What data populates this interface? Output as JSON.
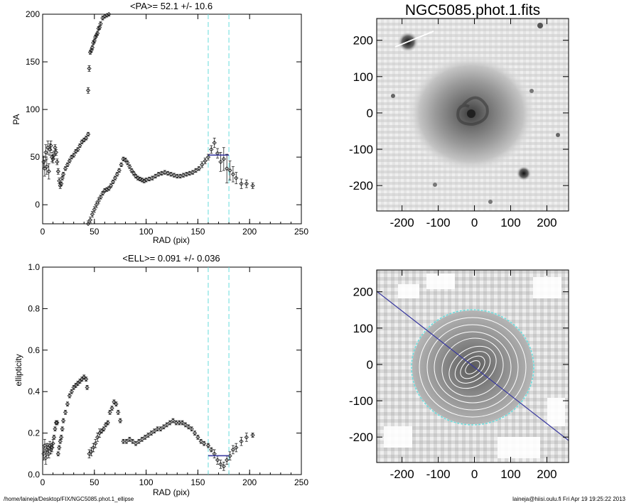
{
  "footer": {
    "left": "/home/laineja/Desktop/FIX/NGC5085.phot.1_ellipse",
    "right": "laineja@hiisi.oulu.fi  Fri Apr 19 19:25:22 2013"
  },
  "colors": {
    "marker": "#222222",
    "guide": "#66dddd",
    "fit": "#3a3aa0",
    "galaxy_core": "#505050",
    "background_sky": "#e6e6e6"
  },
  "chart_data": [
    {
      "type": "scatter",
      "title": "<PA>=  52.1 +/-  10.6",
      "xlabel": "RAD (pix)",
      "ylabel": "PA",
      "xlim": [
        0,
        250
      ],
      "ylim": [
        -20,
        200
      ],
      "xticks": [
        0,
        50,
        100,
        150,
        200,
        250
      ],
      "yticks": [
        0,
        50,
        100,
        150,
        200
      ],
      "guides_x": [
        160,
        180
      ],
      "mean_line": {
        "x": [
          160,
          180
        ],
        "y": 52.1
      },
      "series": [
        {
          "x": [
            1,
            2,
            3,
            4,
            5,
            6,
            7,
            8,
            9,
            10,
            11,
            12,
            13,
            14,
            15,
            16,
            17,
            18,
            19,
            20,
            22,
            24,
            26,
            28,
            30,
            32,
            34,
            36,
            38,
            40,
            42,
            44
          ],
          "y": [
            45,
            38,
            55,
            40,
            60,
            35,
            58,
            62,
            50,
            48,
            52,
            60,
            55,
            45,
            35,
            25,
            20,
            22,
            28,
            32,
            38,
            42,
            46,
            50,
            52,
            56,
            58,
            62,
            66,
            68,
            70,
            74
          ],
          "err": [
            6,
            8,
            8,
            8,
            7,
            8,
            6,
            5,
            5,
            4,
            4,
            3,
            3,
            3,
            3,
            3,
            3,
            2,
            2,
            2,
            2,
            2,
            2,
            2,
            2,
            2,
            2,
            2,
            2,
            2,
            2,
            2
          ]
        },
        {
          "x": [
            44,
            45,
            46,
            47,
            48,
            49,
            50,
            51,
            52,
            53,
            54,
            55,
            56,
            58,
            60,
            62,
            64
          ],
          "y": [
            120,
            143,
            160,
            162,
            165,
            170,
            172,
            176,
            178,
            180,
            185,
            186,
            190,
            196,
            198,
            199,
            200
          ],
          "err": [
            3,
            3,
            2,
            2,
            2,
            2,
            2,
            2,
            2,
            2,
            2,
            2,
            2,
            2,
            2,
            2,
            2
          ]
        },
        {
          "x": [
            44,
            46,
            48,
            50,
            52,
            54,
            56,
            58,
            60,
            62,
            64,
            66,
            68,
            70,
            72,
            74,
            76,
            78,
            80,
            82,
            84,
            86,
            88,
            90,
            92,
            94,
            96,
            98,
            100,
            103,
            106,
            109,
            112,
            115,
            118,
            121,
            124,
            127,
            130,
            133,
            136,
            139,
            142,
            145,
            148,
            151,
            154,
            157
          ],
          "y": [
            -20,
            -16,
            -10,
            -5,
            0,
            4,
            8,
            12,
            15,
            16,
            17,
            20,
            24,
            28,
            32,
            36,
            42,
            48,
            47,
            44,
            40,
            36,
            33,
            30,
            28,
            27,
            26,
            25,
            26,
            27,
            28,
            30,
            32,
            33,
            34,
            33,
            32,
            31,
            30,
            30,
            31,
            32,
            33,
            34,
            36,
            38,
            42,
            46
          ],
          "err": [
            3,
            3,
            3,
            3,
            3,
            3,
            2,
            2,
            2,
            2,
            2,
            2,
            2,
            2,
            2,
            2,
            2,
            2,
            2,
            2,
            2,
            2,
            2,
            2,
            2,
            2,
            2,
            2,
            2,
            2,
            2,
            2,
            2,
            2,
            2,
            2,
            2,
            2,
            2,
            2,
            2,
            2,
            2,
            2,
            2,
            2,
            3,
            3
          ]
        },
        {
          "x": [
            160,
            163,
            166,
            169,
            172,
            175,
            178,
            181,
            184,
            187,
            192,
            197,
            203
          ],
          "y": [
            50,
            58,
            65,
            54,
            45,
            48,
            38,
            36,
            32,
            28,
            22,
            22,
            20
          ],
          "err": [
            3,
            4,
            5,
            5,
            10,
            12,
            15,
            10,
            8,
            6,
            5,
            4,
            3
          ]
        }
      ]
    },
    {
      "type": "scatter",
      "title": "<ELL>= 0.091 +/-  0.036",
      "xlabel": "RAD (pix)",
      "ylabel": "ellipticity",
      "xlim": [
        0,
        250
      ],
      "ylim": [
        0,
        1
      ],
      "xticks": [
        0,
        50,
        100,
        150,
        200,
        250
      ],
      "yticks": [
        0.0,
        0.2,
        0.4,
        0.6,
        0.8,
        1.0
      ],
      "guides_x": [
        160,
        180
      ],
      "mean_line": {
        "x": [
          160,
          180
        ],
        "y": 0.091
      },
      "series": [
        {
          "x": [
            1,
            2,
            3,
            4,
            5,
            6,
            7,
            8,
            9,
            10,
            11,
            12,
            13,
            14,
            15,
            16,
            17,
            18,
            19,
            20,
            22,
            24,
            26,
            28,
            30,
            32,
            34,
            36,
            38,
            40,
            42,
            43
          ],
          "y": [
            0.1,
            0.14,
            0.08,
            0.12,
            0.13,
            0.1,
            0.14,
            0.12,
            0.13,
            0.15,
            0.18,
            0.22,
            0.25,
            0.25,
            0.1,
            0.13,
            0.16,
            0.18,
            0.22,
            0.26,
            0.3,
            0.34,
            0.38,
            0.4,
            0.42,
            0.43,
            0.44,
            0.45,
            0.46,
            0.47,
            0.46,
            0.42
          ],
          "err": [
            0.03,
            0.03,
            0.03,
            0.03,
            0.02,
            0.02,
            0.02,
            0.02,
            0.02,
            0.02,
            0.01,
            0.01,
            0.01,
            0.01,
            0.01,
            0.01,
            0.01,
            0.01,
            0.01,
            0.01,
            0.01,
            0.01,
            0.01,
            0.01,
            0.01,
            0.01,
            0.01,
            0.01,
            0.01,
            0.01,
            0.01,
            0.01
          ]
        },
        {
          "x": [
            45,
            47,
            49,
            51,
            53,
            55,
            57,
            59,
            61,
            63,
            65,
            67,
            69,
            71,
            73,
            75
          ],
          "y": [
            0.1,
            0.11,
            0.13,
            0.15,
            0.18,
            0.2,
            0.21,
            0.22,
            0.24,
            0.25,
            0.3,
            0.32,
            0.35,
            0.34,
            0.3,
            0.26
          ],
          "err": [
            0.02,
            0.02,
            0.02,
            0.02,
            0.02,
            0.02,
            0.01,
            0.01,
            0.01,
            0.01,
            0.01,
            0.01,
            0.01,
            0.01,
            0.01,
            0.01
          ]
        },
        {
          "x": [
            78,
            81,
            84,
            87,
            90,
            93,
            96,
            99,
            102,
            105,
            108,
            111,
            114,
            117,
            120,
            123,
            126,
            129,
            132,
            135,
            138,
            141,
            144,
            147,
            150,
            153,
            156
          ],
          "y": [
            0.16,
            0.16,
            0.17,
            0.16,
            0.15,
            0.16,
            0.17,
            0.18,
            0.19,
            0.2,
            0.21,
            0.22,
            0.22,
            0.23,
            0.24,
            0.25,
            0.26,
            0.25,
            0.25,
            0.25,
            0.24,
            0.23,
            0.22,
            0.2,
            0.18,
            0.16,
            0.15
          ],
          "err": [
            0.01,
            0.01,
            0.01,
            0.01,
            0.01,
            0.01,
            0.01,
            0.01,
            0.01,
            0.01,
            0.01,
            0.01,
            0.01,
            0.01,
            0.01,
            0.01,
            0.01,
            0.01,
            0.01,
            0.01,
            0.01,
            0.01,
            0.01,
            0.01,
            0.01,
            0.01,
            0.01
          ]
        },
        {
          "x": [
            160,
            163,
            166,
            169,
            172,
            175,
            178,
            181,
            184,
            187,
            192,
            197,
            203
          ],
          "y": [
            0.14,
            0.12,
            0.1,
            0.07,
            0.05,
            0.04,
            0.07,
            0.09,
            0.12,
            0.13,
            0.16,
            0.18,
            0.19
          ],
          "err": [
            0.01,
            0.01,
            0.02,
            0.02,
            0.02,
            0.02,
            0.02,
            0.02,
            0.02,
            0.02,
            0.02,
            0.02,
            0.01
          ]
        }
      ]
    },
    {
      "type": "heatmap",
      "title": "NGC5085.phot.1.fits",
      "xlim": [
        -270,
        260
      ],
      "ylim": [
        -270,
        260
      ],
      "xticks": [
        -200,
        -100,
        0,
        100,
        200
      ],
      "yticks": [
        -200,
        -100,
        0,
        100,
        200
      ]
    },
    {
      "type": "heatmap",
      "title": "",
      "xlim": [
        -270,
        260
      ],
      "ylim": [
        -270,
        260
      ],
      "xticks": [
        -200,
        -100,
        0,
        100,
        200
      ],
      "yticks": [
        -200,
        -100,
        0,
        100,
        200
      ]
    }
  ]
}
